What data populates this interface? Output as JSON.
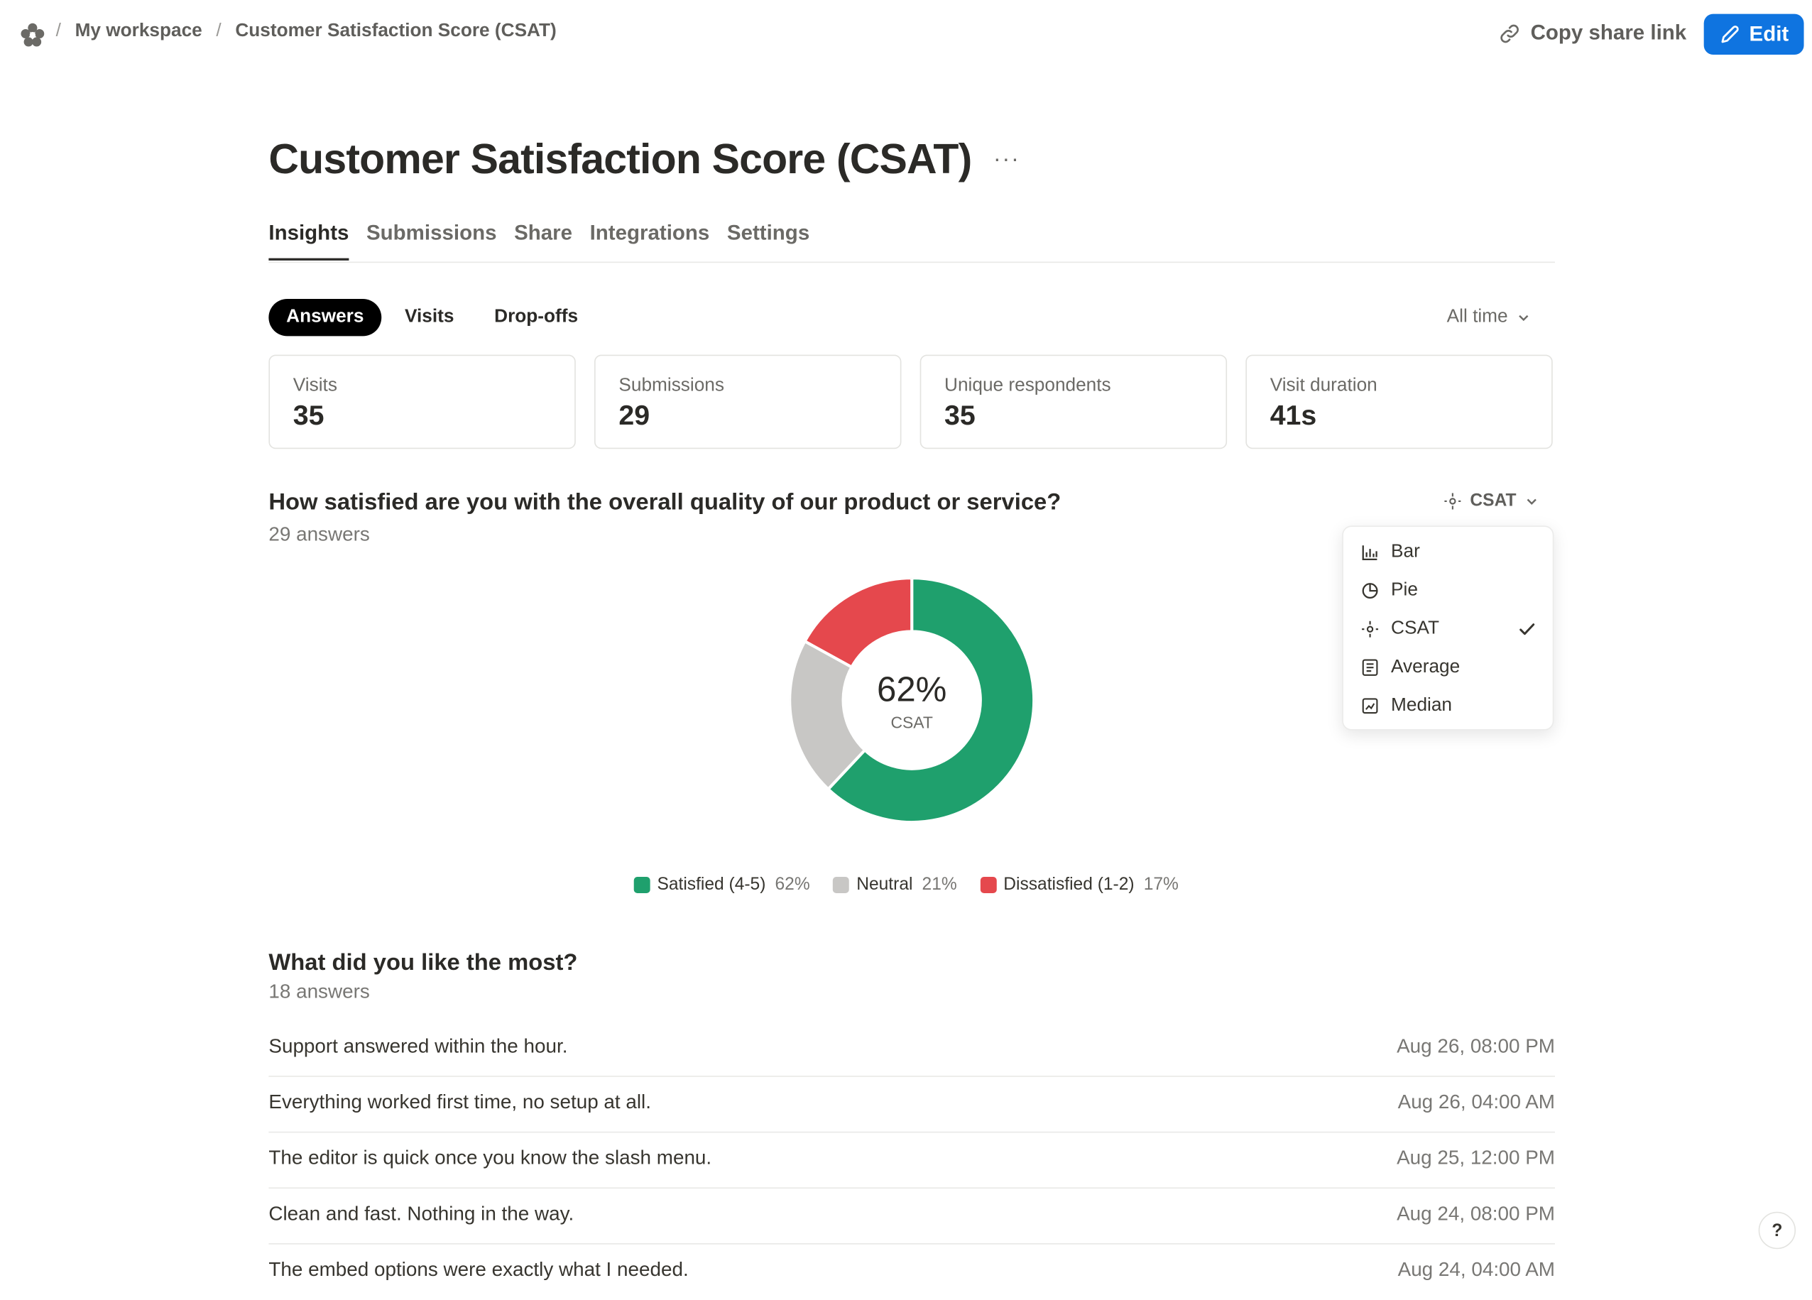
{
  "breadcrumb": {
    "workspace": "My workspace",
    "page": "Customer Satisfaction Score (CSAT)",
    "separator": "/"
  },
  "header": {
    "copy_link_label": "Copy share link",
    "edit_label": "Edit"
  },
  "page": {
    "title": "Customer Satisfaction Score (CSAT)",
    "more_label": "···"
  },
  "tabs": [
    "Insights",
    "Submissions",
    "Share",
    "Integrations",
    "Settings"
  ],
  "subtabs": {
    "answers": "Answers",
    "visits": "Visits",
    "dropoffs": "Drop-offs"
  },
  "time_filter": "All time",
  "stats": [
    {
      "label": "Visits",
      "value": "35"
    },
    {
      "label": "Submissions",
      "value": "29"
    },
    {
      "label": "Unique respondents",
      "value": "35"
    },
    {
      "label": "Visit duration",
      "value": "41s"
    }
  ],
  "question1": {
    "title": "How satisfied are you with the overall quality of our product or service?",
    "count": "29 answers",
    "view_selector": "CSAT"
  },
  "view_menu": {
    "items": [
      {
        "label": "Bar",
        "icon": "bar-chart-icon"
      },
      {
        "label": "Pie",
        "icon": "pie-chart-icon"
      },
      {
        "label": "CSAT",
        "icon": "csat-icon",
        "selected": true
      },
      {
        "label": "Average",
        "icon": "average-icon"
      },
      {
        "label": "Median",
        "icon": "median-icon"
      }
    ]
  },
  "chart_data": {
    "type": "pie",
    "center_value": "62%",
    "center_label": "CSAT",
    "categories": [
      "Satisfied (4-5)",
      "Neutral (21%)",
      "Dissatisfied (1-2)"
    ],
    "slices": [
      {
        "label": "Satisfied (4-5)",
        "value": 62,
        "pct_label": "62%",
        "color": "#1fa06d"
      },
      {
        "label": "Neutral",
        "value": 21,
        "pct_label": "21%",
        "color": "#c8c7c5"
      },
      {
        "label": "Dissatisfied (1-2)",
        "value": 17,
        "pct_label": "17%",
        "color": "#e5484d"
      }
    ]
  },
  "question2": {
    "title": "What did you like the most?",
    "count": "18 answers",
    "answers": [
      {
        "text": "Support answered within the hour.",
        "date": "Aug 26, 08:00 PM"
      },
      {
        "text": "Everything worked first time, no setup at all.",
        "date": "Aug 26, 04:00 AM"
      },
      {
        "text": "The editor is quick once you know the slash menu.",
        "date": "Aug 25, 12:00 PM"
      },
      {
        "text": "Clean and fast. Nothing in the way.",
        "date": "Aug 24, 08:00 PM"
      },
      {
        "text": "The embed options were exactly what I needed.",
        "date": "Aug 24, 04:00 AM"
      }
    ]
  },
  "help_label": "?"
}
